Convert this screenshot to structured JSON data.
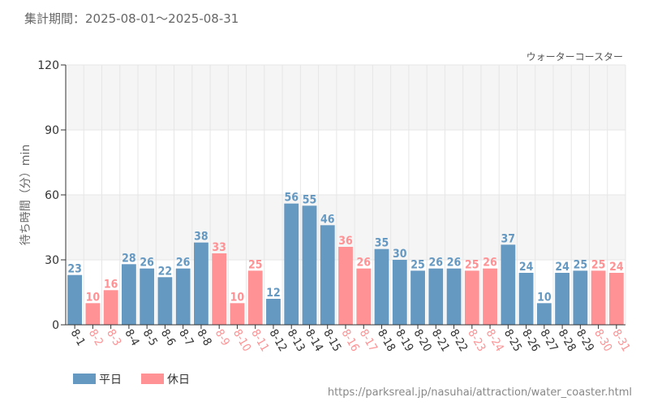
{
  "header": {
    "period_label": "集計期間：2025-08-01～2025-08-31"
  },
  "colors": {
    "weekday": "#6699C2",
    "holiday": "#FF9294",
    "grid": "#E6E6E6",
    "band": "#F5F5F5",
    "axis": "#333333"
  },
  "source_url": "https://parksreal.jp/nasuhai/attraction/water_coaster.html",
  "chart_data": {
    "type": "bar",
    "title": "ウォーターコースター",
    "ylabel": "待ち時間（分）min",
    "ylim": [
      0,
      120
    ],
    "yticks": [
      0,
      30,
      60,
      90,
      120
    ],
    "legend_position": "bottom-left",
    "categories": [
      "8-1",
      "8-2",
      "8-3",
      "8-4",
      "8-5",
      "8-6",
      "8-7",
      "8-8",
      "8-9",
      "8-10",
      "8-11",
      "8-12",
      "8-13",
      "8-14",
      "8-15",
      "8-16",
      "8-17",
      "8-18",
      "8-19",
      "8-20",
      "8-21",
      "8-22",
      "8-23",
      "8-24",
      "8-25",
      "8-26",
      "8-27",
      "8-28",
      "8-29",
      "8-30",
      "8-31"
    ],
    "values": [
      23,
      10,
      16,
      28,
      26,
      22,
      26,
      38,
      33,
      10,
      25,
      12,
      56,
      55,
      46,
      36,
      26,
      35,
      30,
      25,
      26,
      26,
      25,
      26,
      37,
      24,
      10,
      24,
      25,
      25,
      24
    ],
    "day_type": [
      "weekday",
      "holiday",
      "holiday",
      "weekday",
      "weekday",
      "weekday",
      "weekday",
      "weekday",
      "holiday",
      "holiday",
      "holiday",
      "weekday",
      "weekday",
      "weekday",
      "weekday",
      "holiday",
      "holiday",
      "weekday",
      "weekday",
      "weekday",
      "weekday",
      "weekday",
      "holiday",
      "holiday",
      "weekday",
      "weekday",
      "weekday",
      "weekday",
      "weekday",
      "holiday",
      "holiday"
    ],
    "series": [
      {
        "name": "平日",
        "key": "weekday"
      },
      {
        "name": "休日",
        "key": "holiday"
      }
    ]
  }
}
